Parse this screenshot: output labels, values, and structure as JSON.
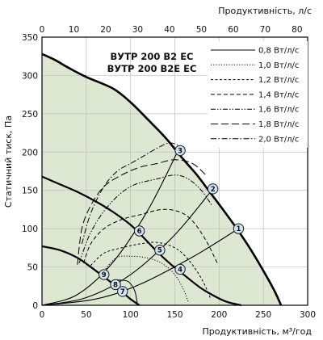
{
  "chart_data": {
    "type": "line",
    "title_lines": [
      "ВУТР 200 В2 ЕС",
      "ВУТР 200 В2Е ЕС"
    ],
    "xlabel": "Продуктивність, м³/год",
    "ylabel": "Статичний тиск, Па",
    "x2label": "Продуктивність, л/с",
    "xlim": [
      0,
      300
    ],
    "ylim": [
      0,
      350
    ],
    "x2lim": [
      0,
      83.33
    ],
    "x_ticks": [
      "0",
      "50",
      "100",
      "150",
      "200",
      "250",
      "300"
    ],
    "y_ticks": [
      "0",
      "50",
      "100",
      "150",
      "200",
      "250",
      "300",
      "350"
    ],
    "x2_ticks": [
      "0",
      "10",
      "20",
      "30",
      "40",
      "50",
      "60",
      "70",
      "80"
    ],
    "grid": true,
    "legend_position": "top-right",
    "colors": {
      "area_fill": "#dde7d2",
      "line": "#000000",
      "grid": "#bfbfbf",
      "point_fill": "#cfe3f1"
    },
    "series": [
      {
        "name": "0,8 Вт/л/с",
        "style": "solid",
        "x": [
          84,
          95,
          100,
          105,
          108
        ],
        "y": [
          33,
          32,
          28,
          18,
          0
        ]
      },
      {
        "name": "1,0 Вт/л/с",
        "style": "dotted",
        "x": [
          70,
          84,
          100,
          118,
          135,
          150,
          160,
          165
        ],
        "y": [
          45,
          62,
          64,
          62,
          55,
          40,
          20,
          5
        ]
      },
      {
        "name": "1,2 Вт/л/с",
        "style": "short-dash",
        "x": [
          55,
          70,
          90,
          110,
          130,
          150,
          165,
          180,
          190
        ],
        "y": [
          52,
          68,
          75,
          80,
          82,
          75,
          60,
          35,
          10
        ]
      },
      {
        "name": "1,4 Вт/л/с",
        "style": "dash",
        "x": [
          47,
          55,
          70,
          90,
          110,
          135,
          155,
          170,
          185,
          198
        ],
        "y": [
          55,
          80,
          100,
          112,
          118,
          125,
          122,
          110,
          85,
          55
        ]
      },
      {
        "name": "1,6 Вт/л/с",
        "style": "dash-dot-dot",
        "x": [
          42,
          55,
          75,
          100,
          130,
          150,
          165,
          180,
          192
        ],
        "y": [
          55,
          95,
          130,
          155,
          165,
          170,
          165,
          150,
          130
        ]
      },
      {
        "name": "1,8 Вт/л/с",
        "style": "long-dash",
        "x": [
          40,
          45,
          55,
          70,
          90,
          110,
          130,
          150,
          170,
          185
        ],
        "y": [
          53,
          100,
          130,
          155,
          170,
          180,
          185,
          190,
          185,
          170
        ]
      },
      {
        "name": "2,0 Вт/л/с",
        "style": "dash-dot",
        "x": [
          45,
          55,
          70,
          85,
          100,
          115,
          130,
          145,
          160
        ],
        "y": [
          80,
          120,
          155,
          175,
          185,
          195,
          205,
          212,
          205
        ]
      }
    ],
    "fan_curves": [
      {
        "x": [
          0,
          15,
          30,
          50,
          80,
          100,
          120,
          140,
          160,
          175,
          190,
          205,
          220,
          235,
          250,
          262,
          270
        ],
        "y": [
          328,
          320,
          310,
          298,
          283,
          265,
          242,
          218,
          190,
          170,
          147,
          124,
          100,
          74,
          45,
          20,
          0
        ]
      },
      {
        "x": [
          0,
          20,
          40,
          60,
          80,
          100,
          115,
          130,
          145,
          160,
          180,
          198,
          210,
          225
        ],
        "y": [
          168,
          158,
          148,
          136,
          122,
          105,
          88,
          70,
          54,
          40,
          22,
          10,
          4,
          0
        ]
      },
      {
        "x": [
          0,
          20,
          40,
          55,
          70,
          80,
          90,
          100,
          110
        ],
        "y": [
          77,
          72,
          62,
          50,
          37,
          28,
          18,
          8,
          0
        ]
      }
    ],
    "system_curves": [
      {
        "x": [
          0,
          40,
          80,
          120,
          155
        ],
        "y": [
          0,
          14,
          56,
          125,
          205
        ]
      },
      {
        "x": [
          0,
          50,
          100,
          150,
          193
        ],
        "y": [
          0,
          10,
          40,
          92,
          152
        ]
      },
      {
        "x": [
          0,
          60,
          110,
          170,
          222
        ],
        "y": [
          0,
          8,
          27,
          63,
          100
        ]
      }
    ],
    "operating_points": [
      {
        "label": "1",
        "x": 222,
        "y": 100
      },
      {
        "label": "2",
        "x": 193,
        "y": 152
      },
      {
        "label": "3",
        "x": 156,
        "y": 202
      },
      {
        "label": "4",
        "x": 156,
        "y": 47
      },
      {
        "label": "5",
        "x": 133,
        "y": 72
      },
      {
        "label": "6",
        "x": 110,
        "y": 97
      },
      {
        "label": "7",
        "x": 91,
        "y": 18
      },
      {
        "label": "8",
        "x": 83,
        "y": 27
      },
      {
        "label": "9",
        "x": 70,
        "y": 40
      }
    ]
  }
}
